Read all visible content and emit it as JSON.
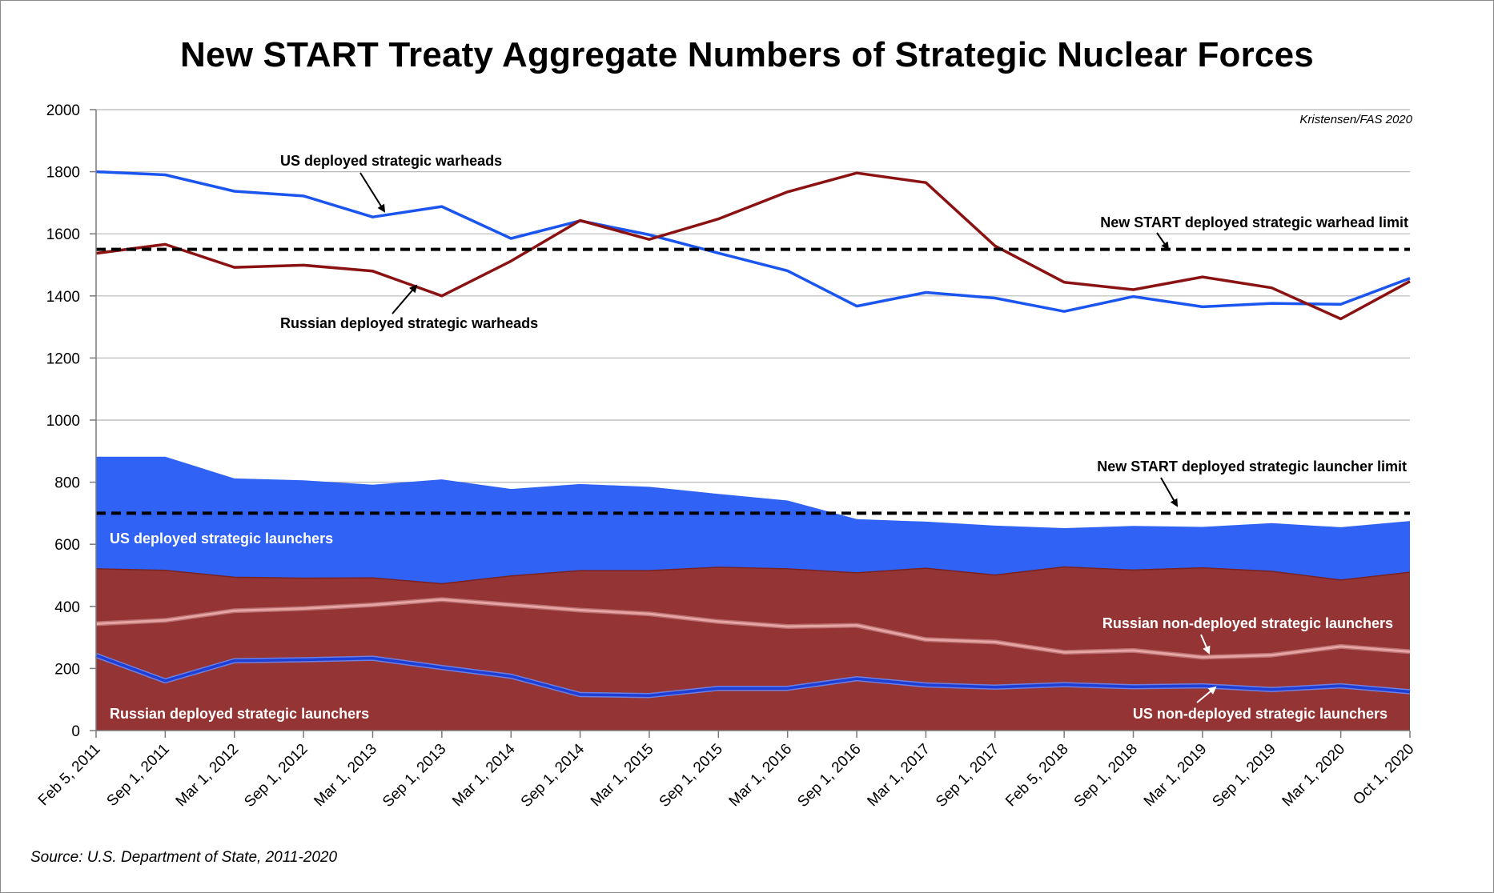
{
  "chart_data": {
    "type": "area",
    "title": "New START Treaty Aggregate Numbers of Strategic Nuclear Forces",
    "credit": "Kristensen/FAS 2020",
    "source": "Source: U.S. Department of State, 2011-2020",
    "ylim": [
      0,
      2000
    ],
    "yticks": [
      "0",
      "200",
      "400",
      "600",
      "800",
      "1000",
      "1200",
      "1400",
      "1600",
      "1800",
      "2000"
    ],
    "grid": true,
    "categories": [
      "Feb 5, 2011",
      "Sep 1, 2011",
      "Mar 1, 2012",
      "Sep 1, 2012",
      "Mar 1, 2013",
      "Sep 1, 2013",
      "Mar 1, 2014",
      "Sep 1, 2014",
      "Mar 1, 2015",
      "Sep 1, 2015",
      "Mar 1, 2016",
      "Sep 1, 2016",
      "Mar 1, 2017",
      "Sep 1, 2017",
      "Feb 5, 2018",
      "Sep 1, 2018",
      "Mar 1, 2019",
      "Sep 1, 2019",
      "Mar 1, 2020",
      "Oct 1, 2020"
    ],
    "series": [
      {
        "name": "US deployed strategic launchers",
        "kind": "area",
        "color": "#2f62f5",
        "values": [
          882,
          882,
          812,
          806,
          792,
          809,
          778,
          794,
          785,
          762,
          741,
          681,
          673,
          660,
          652,
          659,
          656,
          668,
          655,
          675
        ]
      },
      {
        "name": "Russian deployed strategic launchers",
        "kind": "area",
        "color": "#943434",
        "values": [
          521,
          516,
          494,
          491,
          492,
          473,
          498,
          515,
          515,
          526,
          521,
          508,
          523,
          501,
          527,
          517,
          524,
          513,
          485,
          510
        ]
      },
      {
        "name": "Russian non-deployed strategic launchers",
        "kind": "line",
        "color": "#e8a3a3",
        "values": [
          344,
          355,
          386,
          393,
          405,
          422,
          405,
          388,
          376,
          351,
          335,
          339,
          293,
          285,
          252,
          258,
          236,
          243,
          271,
          254
        ]
      },
      {
        "name": "US non-deployed strategic launchers",
        "kind": "line",
        "color": "#1e3fd6",
        "values": [
          242,
          160,
          225,
          228,
          233,
          203,
          175,
          116,
          113,
          136,
          136,
          167,
          147,
          140,
          148,
          141,
          144,
          132,
          144,
          125
        ]
      },
      {
        "name": "US deployed strategic warheads",
        "kind": "line",
        "color": "#1a55f0",
        "values": [
          1800,
          1790,
          1737,
          1722,
          1654,
          1688,
          1585,
          1642,
          1597,
          1538,
          1481,
          1367,
          1411,
          1393,
          1350,
          1398,
          1365,
          1376,
          1373,
          1457
        ]
      },
      {
        "name": "Russian deployed strategic warheads",
        "kind": "line",
        "color": "#8b1212",
        "values": [
          1537,
          1566,
          1492,
          1499,
          1480,
          1400,
          1512,
          1643,
          1582,
          1648,
          1735,
          1796,
          1765,
          1561,
          1444,
          1420,
          1461,
          1426,
          1326,
          1447
        ]
      }
    ],
    "limits": [
      {
        "name": "New START deployed strategic warhead limit",
        "value": 1550
      },
      {
        "name": "New START deployed strategic launcher limit",
        "value": 700
      }
    ],
    "annotations": {
      "us_warheads": "US deployed strategic warheads",
      "ru_warheads": "Russian deployed strategic warheads",
      "warhead_limit": "New START deployed strategic warhead limit",
      "launcher_limit": "New START deployed strategic launcher limit",
      "us_launchers": "US deployed strategic launchers",
      "ru_launchers": "Russian deployed strategic launchers",
      "ru_nondeployed": "Russian non-deployed strategic launchers",
      "us_nondeployed": "US non-deployed strategic launchers"
    }
  }
}
